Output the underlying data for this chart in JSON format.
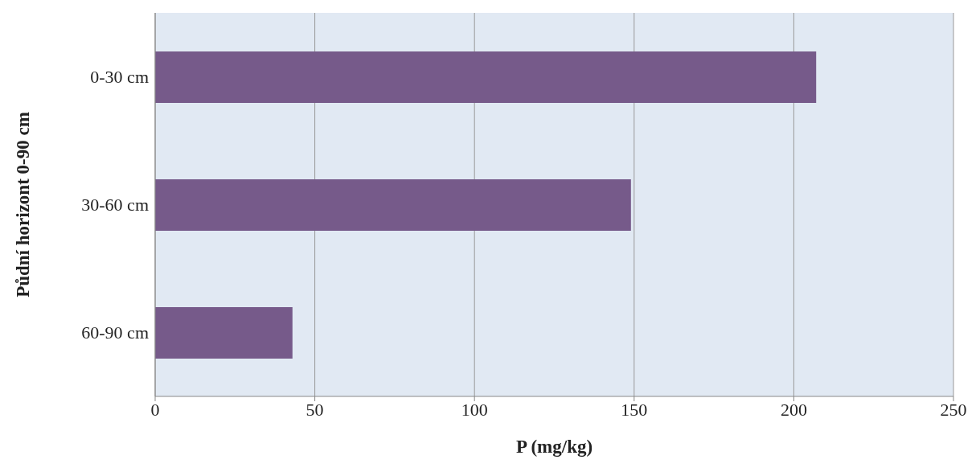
{
  "chart_data": {
    "type": "bar",
    "orientation": "horizontal",
    "categories": [
      "0-30 cm",
      "30-60 cm",
      "60-90 cm"
    ],
    "values": [
      207,
      149,
      43
    ],
    "color": "#765a8a",
    "xlim": [
      0,
      250
    ],
    "xticks": [
      0,
      50,
      100,
      150,
      200,
      250
    ],
    "grid": "x",
    "xlabel": "P (mg/kg)",
    "ylabel": "Půdní horizont 0-90 cm"
  }
}
